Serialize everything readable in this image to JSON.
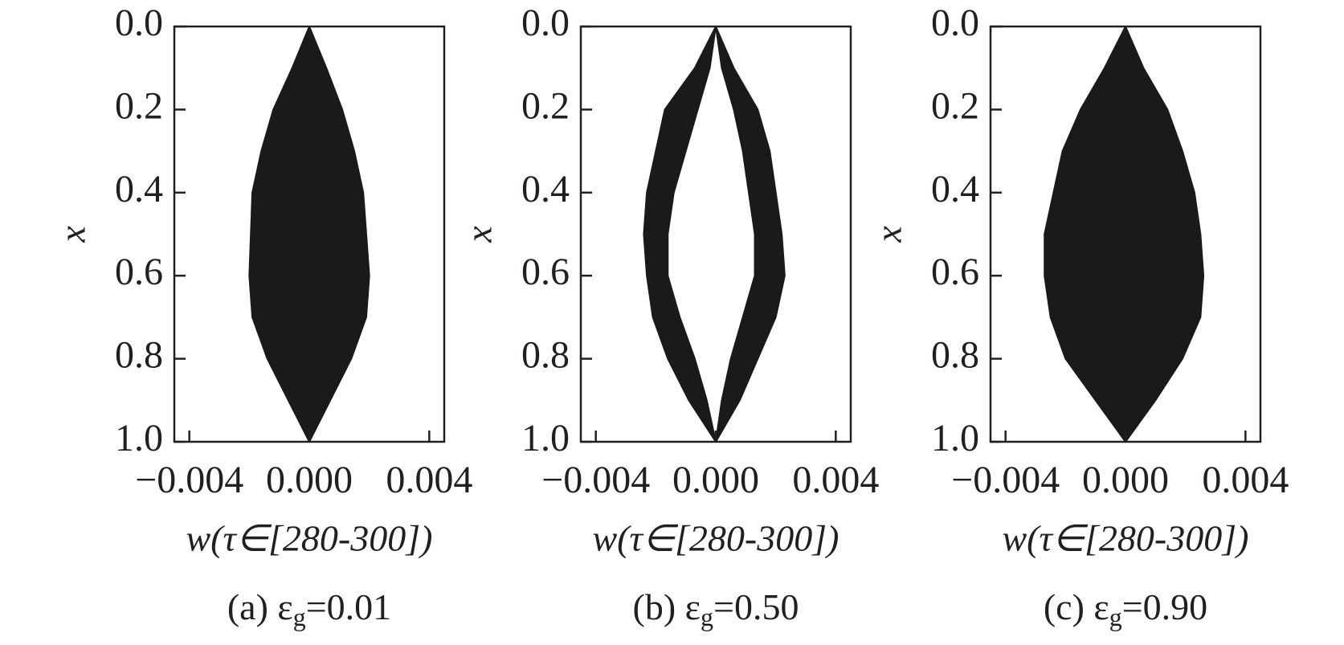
{
  "chart_data": [
    {
      "type": "band",
      "caption": {
        "prefix": "(a) ε",
        "sub": "g",
        "suffix": "=0.01"
      },
      "xlabel": "w(τ∈[280-300])",
      "ylabel": "x",
      "positions": [
        0,
        0.1,
        0.2,
        0.3,
        0.4,
        0.5,
        0.6,
        0.7,
        0.8,
        0.9,
        1.0
      ],
      "bands": [
        {
          "color": "#1a1a1a",
          "left": [
            0,
            -0.00057,
            -0.0012,
            -0.0016,
            -0.0019,
            -0.00195,
            -0.002,
            -0.0019,
            -0.0014,
            -0.0007,
            0
          ],
          "right": [
            0,
            0.00057,
            0.0011,
            0.0015,
            0.0018,
            0.0019,
            0.002,
            0.0019,
            0.0014,
            0.0007,
            0
          ]
        }
      ],
      "xlim": [
        -0.0045,
        0.0045
      ],
      "xticks": [
        {
          "value": -0.004,
          "label": "−0.004"
        },
        {
          "value": 0,
          "label": "0.000"
        },
        {
          "value": 0.004,
          "label": "0.004"
        }
      ],
      "ylim": [
        0,
        1
      ],
      "y_inverted": true,
      "yticks": [
        {
          "value": 0,
          "label": "0.0"
        },
        {
          "value": 0.2,
          "label": "0.2"
        },
        {
          "value": 0.4,
          "label": "0.4"
        },
        {
          "value": 0.6,
          "label": "0.6"
        },
        {
          "value": 0.8,
          "label": "0.8"
        },
        {
          "value": 1,
          "label": "1.0"
        }
      ]
    },
    {
      "type": "band",
      "caption": {
        "prefix": "(b) ε",
        "sub": "g",
        "suffix": "=0.50"
      },
      "xlabel": "w(τ∈[280-300])",
      "ylabel": "x",
      "positions": [
        0,
        0.1,
        0.2,
        0.3,
        0.4,
        0.5,
        0.6,
        0.7,
        0.8,
        0.9,
        1.0
      ],
      "bands": [
        {
          "color": "#1a1a1a",
          "left": [
            0,
            -0.0007,
            -0.0017,
            -0.002,
            -0.0023,
            -0.0024,
            -0.0023,
            -0.0021,
            -0.0016,
            -0.0009,
            0
          ],
          "right": [
            0,
            -0.0002,
            -0.0006,
            -0.001,
            -0.0014,
            -0.0016,
            -0.0016,
            -0.0012,
            -0.0007,
            -0.0003,
            0
          ]
        },
        {
          "color": "#1a1a1a",
          "left": [
            0,
            0.0002,
            0.0006,
            0.0009,
            0.0011,
            0.0013,
            0.0013,
            0.0009,
            0.0005,
            0.0002,
            0
          ],
          "right": [
            0,
            0.0006,
            0.0014,
            0.0018,
            0.002,
            0.0022,
            0.0023,
            0.002,
            0.0014,
            0.0008,
            0
          ]
        }
      ],
      "xlim": [
        -0.0045,
        0.0045
      ],
      "xticks": [
        {
          "value": -0.004,
          "label": "−0.004"
        },
        {
          "value": 0,
          "label": "0.000"
        },
        {
          "value": 0.004,
          "label": "0.004"
        }
      ],
      "ylim": [
        0,
        1
      ],
      "y_inverted": true,
      "yticks": [
        {
          "value": 0,
          "label": "0.0"
        },
        {
          "value": 0.2,
          "label": "0.2"
        },
        {
          "value": 0.4,
          "label": "0.4"
        },
        {
          "value": 0.6,
          "label": "0.6"
        },
        {
          "value": 0.8,
          "label": "0.8"
        },
        {
          "value": 1,
          "label": "1.0"
        }
      ]
    },
    {
      "type": "band",
      "caption": {
        "prefix": "(c) ε",
        "sub": "g",
        "suffix": "=0.90"
      },
      "xlabel": "w(τ∈[280-300])",
      "ylabel": "x",
      "positions": [
        0,
        0.1,
        0.2,
        0.3,
        0.4,
        0.5,
        0.6,
        0.7,
        0.8,
        0.9,
        1.0
      ],
      "bands": [
        {
          "color": "#1a1a1a",
          "left": [
            0,
            -0.0007,
            -0.0015,
            -0.0021,
            -0.0024,
            -0.0027,
            -0.0027,
            -0.0025,
            -0.002,
            -0.001,
            0
          ],
          "right": [
            0,
            0.0006,
            0.0014,
            0.0019,
            0.0023,
            0.0025,
            0.0026,
            0.0025,
            0.0019,
            0.001,
            0
          ]
        }
      ],
      "xlim": [
        -0.0045,
        0.0045
      ],
      "xticks": [
        {
          "value": -0.004,
          "label": "−0.004"
        },
        {
          "value": 0,
          "label": "0.000"
        },
        {
          "value": 0.004,
          "label": "0.004"
        }
      ],
      "ylim": [
        0,
        1
      ],
      "y_inverted": true,
      "yticks": [
        {
          "value": 0,
          "label": "0.0"
        },
        {
          "value": 0.2,
          "label": "0.2"
        },
        {
          "value": 0.4,
          "label": "0.4"
        },
        {
          "value": 0.6,
          "label": "0.6"
        },
        {
          "value": 0.8,
          "label": "0.8"
        },
        {
          "value": 1,
          "label": "1.0"
        }
      ]
    }
  ]
}
